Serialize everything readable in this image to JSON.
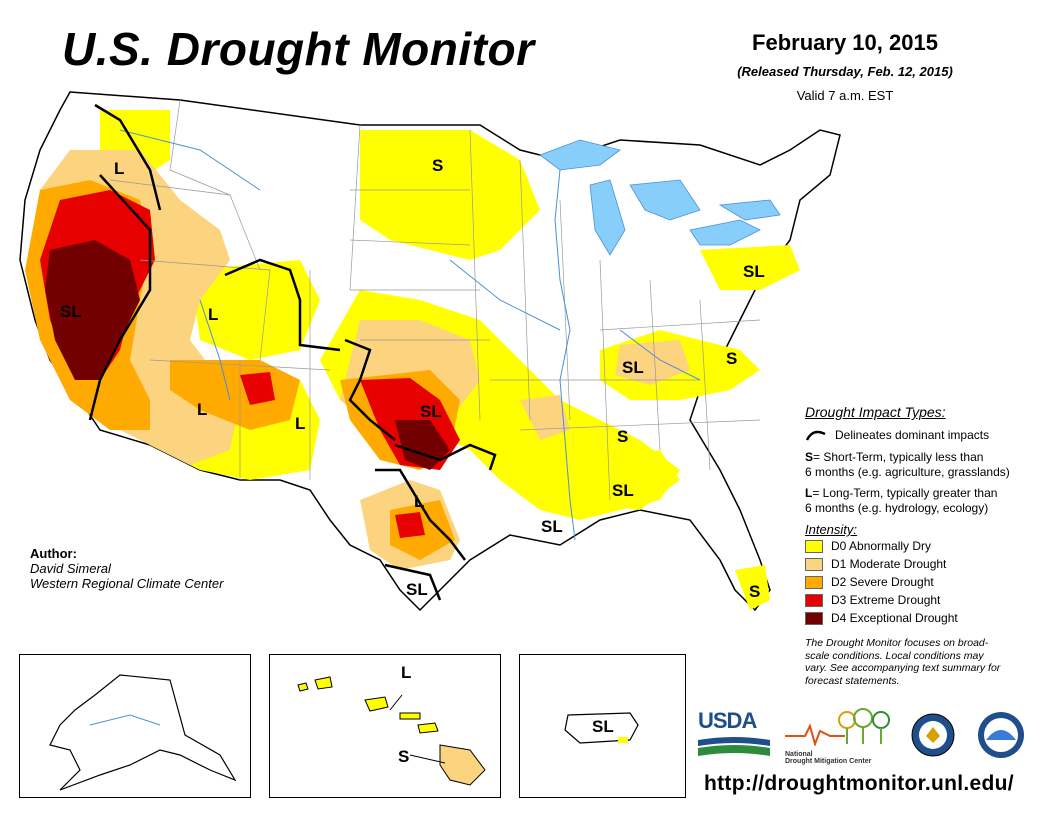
{
  "header": {
    "title": "U.S. Drought Monitor",
    "date": "February 10, 2015",
    "released": "(Released Thursday, Feb. 12, 2015)",
    "valid": "Valid 7 a.m. EST"
  },
  "author": {
    "heading": "Author:",
    "name": "David Simeral",
    "org": "Western Regional Climate Center"
  },
  "impact_labels": {
    "pnw": "L",
    "dakotas": "S",
    "mid_atlantic": "SL",
    "nevada_california": "SL",
    "utah": "L",
    "arizona": "L",
    "new_mexico": "L",
    "oklahoma": "SL",
    "tennessee": "SL",
    "virginia_nc": "S",
    "georgia": "S",
    "gulf_coast": "SL",
    "louisiana": "SL",
    "texas": "L",
    "south_texas": "SL",
    "florida": "S",
    "hawaii_l": "L",
    "hawaii_s": "S",
    "puerto_rico": "SL"
  },
  "legend": {
    "impact_heading": "Drought Impact Types:",
    "delineates": "Delineates dominant impacts",
    "short_key": "S",
    "short_text_1": "= Short-Term, typically less than",
    "short_text_2": "6 months (e.g. agriculture, grasslands)",
    "long_key": "L",
    "long_text_1": "= Long-Term, typically greater than",
    "long_text_2": "6 months (e.g. hydrology, ecology)",
    "intensity_heading": "Intensity:",
    "levels": [
      {
        "label": "D0 Abnormally Dry",
        "color": "#ffff00"
      },
      {
        "label": "D1 Moderate Drought",
        "color": "#fcd37f"
      },
      {
        "label": "D2 Severe Drought",
        "color": "#ffaa00"
      },
      {
        "label": "D3 Extreme Drought",
        "color": "#e60000"
      },
      {
        "label": "D4 Exceptional Drought",
        "color": "#730000"
      }
    ],
    "note_1": "The Drought Monitor focuses on broad-",
    "note_2": "scale conditions. Local conditions may",
    "note_3": "vary. See accompanying text summary for",
    "note_4": "forecast statements."
  },
  "logos": {
    "usda": "USDA",
    "ndmc_1": "National",
    "ndmc_2": "Drought Mitigation Center"
  },
  "footer": {
    "url": "http://droughtmonitor.unl.edu/"
  },
  "colors": {
    "water": "#87cefa",
    "state_line": "#999999",
    "river": "#4a90d9"
  }
}
